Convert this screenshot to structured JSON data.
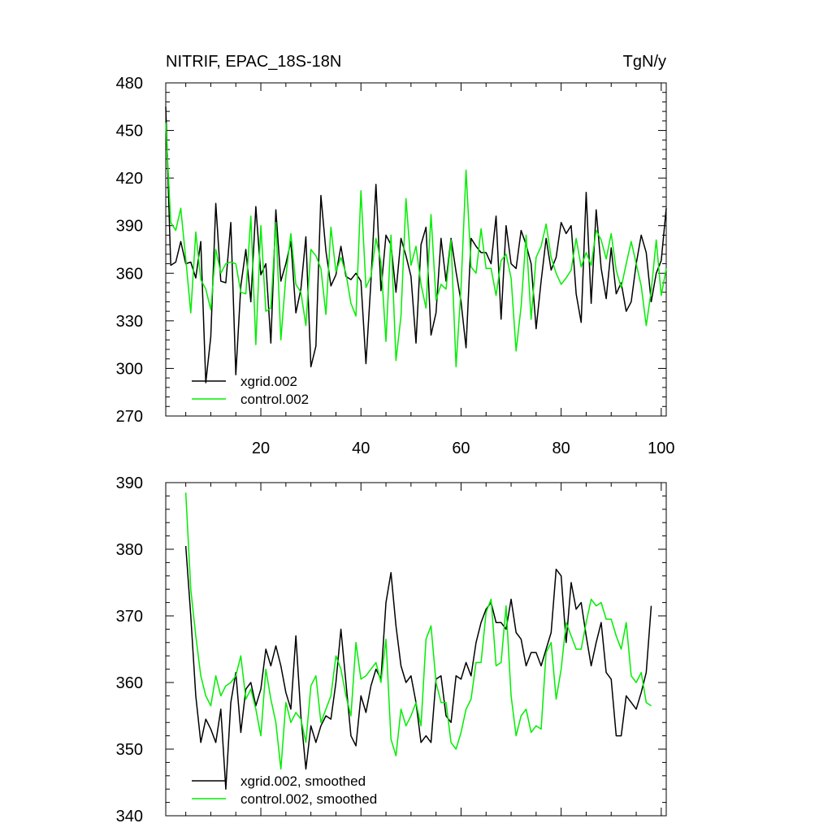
{
  "colors": {
    "xgrid": "#000000",
    "control": "#00ee00",
    "axis": "#000000",
    "background": "#ffffff"
  },
  "chart_data": [
    {
      "type": "line",
      "title": "NITRIF, EPAC_18S-18N",
      "units": "TgN/y",
      "xlabel": "",
      "ylabel": "",
      "xlim": [
        1,
        101
      ],
      "ylim": [
        270,
        480
      ],
      "xticks": [
        20,
        40,
        60,
        80,
        100
      ],
      "yticks": [
        270,
        300,
        330,
        360,
        390,
        420,
        450,
        480
      ],
      "grid": false,
      "legend": "bottom-left",
      "x": [
        1,
        2,
        3,
        4,
        5,
        6,
        7,
        8,
        9,
        10,
        11,
        12,
        13,
        14,
        15,
        16,
        17,
        18,
        19,
        20,
        21,
        22,
        23,
        24,
        25,
        26,
        27,
        28,
        29,
        30,
        31,
        32,
        33,
        34,
        35,
        36,
        37,
        38,
        39,
        40,
        41,
        42,
        43,
        44,
        45,
        46,
        47,
        48,
        49,
        50,
        51,
        52,
        53,
        54,
        55,
        56,
        57,
        58,
        59,
        60,
        61,
        62,
        63,
        64,
        65,
        66,
        67,
        68,
        69,
        70,
        71,
        72,
        73,
        74,
        75,
        76,
        77,
        78,
        79,
        80,
        81,
        82,
        83,
        84,
        85,
        86,
        87,
        88,
        89,
        90,
        91,
        92,
        93,
        94,
        95,
        96,
        97,
        98,
        99,
        100,
        101
      ],
      "series": [
        {
          "name": "xgrid.002",
          "color": "#000000",
          "values": [
            465,
            365,
            367,
            380,
            366,
            367,
            357,
            380,
            291,
            320,
            404,
            355,
            354,
            392,
            296,
            352,
            375,
            342,
            402,
            359,
            366,
            316,
            400,
            355,
            366,
            380,
            335,
            350,
            383,
            301,
            314,
            409,
            374,
            352,
            359,
            377,
            358,
            356,
            360,
            355,
            303,
            355,
            416,
            349,
            384,
            378,
            348,
            382,
            371,
            358,
            316,
            378,
            389,
            321,
            335,
            382,
            355,
            382,
            361,
            342,
            313,
            382,
            377,
            373,
            373,
            366,
            396,
            331,
            390,
            366,
            363,
            387,
            378,
            366,
            325,
            355,
            382,
            362,
            370,
            392,
            385,
            390,
            347,
            329,
            411,
            341,
            400,
            363,
            344,
            376,
            347,
            354,
            336,
            342,
            366,
            384,
            373,
            342,
            360,
            368,
            401
          ]
        },
        {
          "name": "control.002",
          "color": "#00ee00",
          "values": [
            455,
            392,
            387,
            401,
            369,
            335,
            386,
            356,
            350,
            337,
            375,
            360,
            366,
            367,
            366,
            348,
            347,
            396,
            315,
            390,
            336,
            338,
            392,
            318,
            358,
            385,
            353,
            348,
            327,
            375,
            371,
            363,
            334,
            389,
            361,
            370,
            360,
            341,
            333,
            412,
            351,
            358,
            382,
            367,
            317,
            384,
            305,
            333,
            407,
            365,
            377,
            353,
            338,
            397,
            343,
            353,
            350,
            381,
            301,
            351,
            425,
            364,
            360,
            388,
            363,
            363,
            346,
            368,
            372,
            357,
            311,
            339,
            384,
            331,
            370,
            377,
            391,
            370,
            360,
            353,
            357,
            362,
            382,
            364,
            373,
            365,
            387,
            381,
            369,
            385,
            362,
            351,
            366,
            380,
            366,
            352,
            327,
            349,
            381,
            346,
            363
          ]
        }
      ]
    },
    {
      "type": "line",
      "title": "",
      "xlabel": "",
      "ylabel": "",
      "xlim": [
        1,
        101
      ],
      "ylim": [
        340,
        390
      ],
      "yticks": [
        340,
        350,
        360,
        370,
        380,
        390
      ],
      "grid": false,
      "legend": "bottom-left",
      "x": [
        5,
        6,
        7,
        8,
        9,
        10,
        11,
        12,
        13,
        14,
        15,
        16,
        17,
        18,
        19,
        20,
        21,
        22,
        23,
        24,
        25,
        26,
        27,
        28,
        29,
        30,
        31,
        32,
        33,
        34,
        35,
        36,
        37,
        38,
        39,
        40,
        41,
        42,
        43,
        44,
        45,
        46,
        47,
        48,
        49,
        50,
        51,
        52,
        53,
        54,
        55,
        56,
        57,
        58,
        59,
        60,
        61,
        62,
        63,
        64,
        65,
        66,
        67,
        68,
        69,
        70,
        71,
        72,
        73,
        74,
        75,
        76,
        77,
        78,
        79,
        80,
        81,
        82,
        83,
        84,
        85,
        86,
        87,
        88,
        89,
        90,
        91,
        92,
        93,
        94,
        95,
        96,
        97,
        98
      ],
      "series": [
        {
          "name": "xgrid.002, smoothed",
          "color": "#000000",
          "values": [
            380.5,
            370,
            358,
            351,
            354.5,
            353,
            351,
            356,
            344,
            357,
            361.5,
            352.5,
            359,
            360,
            356.5,
            359,
            365,
            362.5,
            365.5,
            362.5,
            358.5,
            356,
            367,
            355,
            347,
            353.5,
            351,
            353.5,
            355,
            354.5,
            360,
            368,
            360,
            352,
            350.5,
            358,
            355.5,
            359.5,
            362,
            360.5,
            372,
            376.5,
            368.5,
            362.5,
            360,
            361,
            357,
            351,
            352,
            351,
            360.5,
            361,
            355,
            354,
            361,
            360.5,
            363,
            361,
            366,
            369,
            371,
            372,
            369,
            369,
            368,
            372.5,
            367.5,
            366.5,
            362.5,
            364.5,
            364.5,
            362.5,
            365,
            367.5,
            377,
            376,
            366,
            375,
            371,
            372,
            367,
            362.5,
            366,
            369,
            361.5,
            360.5,
            352,
            352,
            358,
            357,
            356,
            358.5,
            361.5,
            371.5
          ]
        },
        {
          "name": "control.002, smoothed",
          "color": "#00ee00",
          "values": [
            388.5,
            374,
            367,
            361,
            358,
            356.5,
            361,
            358,
            359.5,
            360,
            361,
            364,
            357.5,
            359,
            356,
            352,
            362,
            357.5,
            354,
            347,
            357,
            354,
            355.5,
            354.5,
            351,
            359.5,
            361,
            354,
            356,
            358,
            364,
            362,
            358,
            355,
            366,
            360.5,
            361,
            362,
            363,
            360,
            366.5,
            351.5,
            349,
            356,
            353.5,
            355,
            357,
            353.5,
            366.5,
            368.5,
            360,
            357,
            357,
            351,
            350,
            352.5,
            356,
            357.5,
            363,
            363,
            370.5,
            372.5,
            362.5,
            363,
            371.5,
            358,
            352,
            355,
            356,
            352.5,
            353.5,
            353,
            364.5,
            366,
            357.5,
            362,
            369,
            367,
            365,
            365,
            369,
            372.5,
            371.5,
            372,
            369.5,
            369.5,
            367,
            365,
            369,
            361,
            360,
            361.5,
            357,
            356.5
          ]
        }
      ]
    }
  ]
}
